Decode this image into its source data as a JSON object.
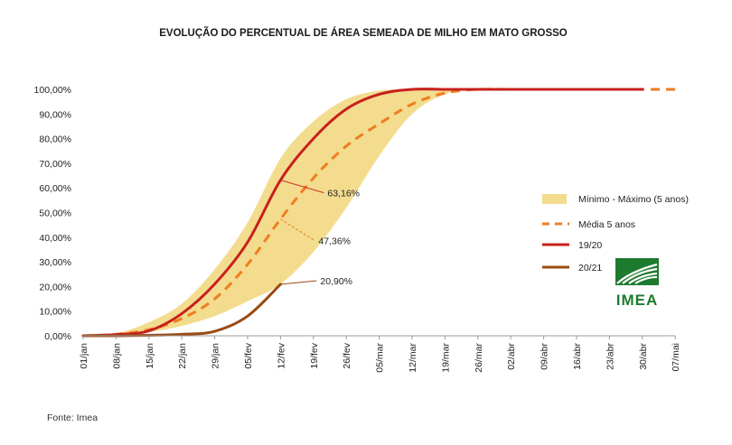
{
  "chart_data": {
    "type": "line",
    "title": "EVOLUÇÃO DO PERCENTUAL DE ÁREA SEMEADA DE MILHO EM MATO GROSSO",
    "categories": [
      "01/jan",
      "08/jan",
      "15/jan",
      "22/jan",
      "29/jan",
      "05/fev",
      "12/fev",
      "19/fev",
      "26/fev",
      "05/mar",
      "12/mar",
      "19/mar",
      "26/mar",
      "02/abr",
      "09/abr",
      "16/abr",
      "23/abr",
      "30/abr",
      "07/mai"
    ],
    "y_ticks": [
      "0,00%",
      "10,00%",
      "20,00%",
      "30,00%",
      "40,00%",
      "50,00%",
      "60,00%",
      "70,00%",
      "80,00%",
      "90,00%",
      "100,00%"
    ],
    "ylim": [
      0,
      100
    ],
    "series": [
      {
        "name": "Mínimo - Máximo (5 anos)",
        "kind": "band",
        "color": "#f3dc8e",
        "min": [
          0,
          0.5,
          1.5,
          4,
          8,
          14,
          21,
          34,
          52,
          73,
          90,
          98,
          100,
          100,
          100,
          100,
          100,
          100,
          null
        ],
        "max": [
          0,
          1,
          5.5,
          13,
          27,
          46,
          72,
          87,
          96,
          99.5,
          100,
          100,
          100,
          100,
          100,
          100,
          100,
          100,
          null
        ]
      },
      {
        "name": "Média 5 anos",
        "kind": "dashed",
        "color": "#ef7d22",
        "values": [
          0,
          0.6,
          2.5,
          7,
          15,
          29,
          47.36,
          64,
          77,
          86,
          94,
          98.5,
          100,
          100,
          100,
          100,
          100,
          100,
          100
        ]
      },
      {
        "name": "19/20",
        "kind": "line",
        "color": "#c8201c",
        "values": [
          0,
          0.5,
          2,
          9,
          21,
          38,
          63.16,
          80,
          92,
          98,
          100,
          100,
          100,
          100,
          100,
          100,
          100,
          100,
          null
        ]
      },
      {
        "name": "20/21",
        "kind": "line",
        "color": "#9c4a12",
        "values": [
          0,
          0,
          0.2,
          0.6,
          1.8,
          8,
          20.9,
          null,
          null,
          null,
          null,
          null,
          null,
          null,
          null,
          null,
          null,
          null,
          null
        ]
      }
    ],
    "annotations": [
      {
        "text": "63,16%",
        "series": "19/20",
        "index": 6
      },
      {
        "text": "47,36%",
        "series": "Média 5 anos",
        "index": 6
      },
      {
        "text": "20,90%",
        "series": "20/21",
        "index": 6
      }
    ],
    "legend_position": "right"
  },
  "source_text": "Fonte: Imea",
  "logo": {
    "text": "IMEA",
    "color": "#1e7a2e"
  }
}
